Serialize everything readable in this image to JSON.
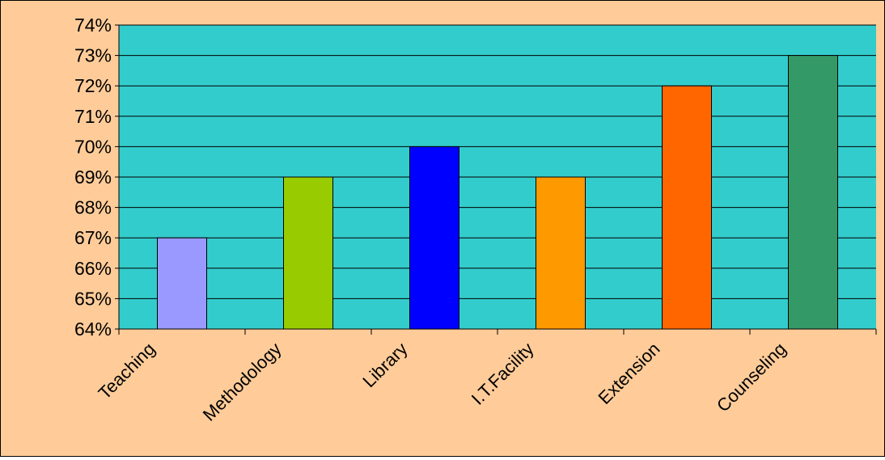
{
  "chart_data": {
    "type": "bar",
    "categories": [
      "Teaching",
      "Methodology",
      "Library",
      "I.T.Facility",
      "Extension",
      "Counseling"
    ],
    "values": [
      67,
      69,
      70,
      69,
      72,
      73
    ],
    "value_unit": "%",
    "ylim": [
      64,
      74
    ],
    "yticks": [
      "64%",
      "65%",
      "66%",
      "67%",
      "68%",
      "69%",
      "70%",
      "71%",
      "72%",
      "73%",
      "74%"
    ],
    "ytick_values": [
      64,
      65,
      66,
      67,
      68,
      69,
      70,
      71,
      72,
      73,
      74
    ],
    "grid": true,
    "legend": "none",
    "bar_colors": [
      "#9999FF",
      "#99CC00",
      "#0000FF",
      "#FF9900",
      "#FF6600",
      "#339966"
    ],
    "colors": {
      "page_background": "#FFCC99",
      "plot_background": "#33CCCC",
      "gridline": "#000000",
      "bar_outline": "#000000"
    }
  }
}
